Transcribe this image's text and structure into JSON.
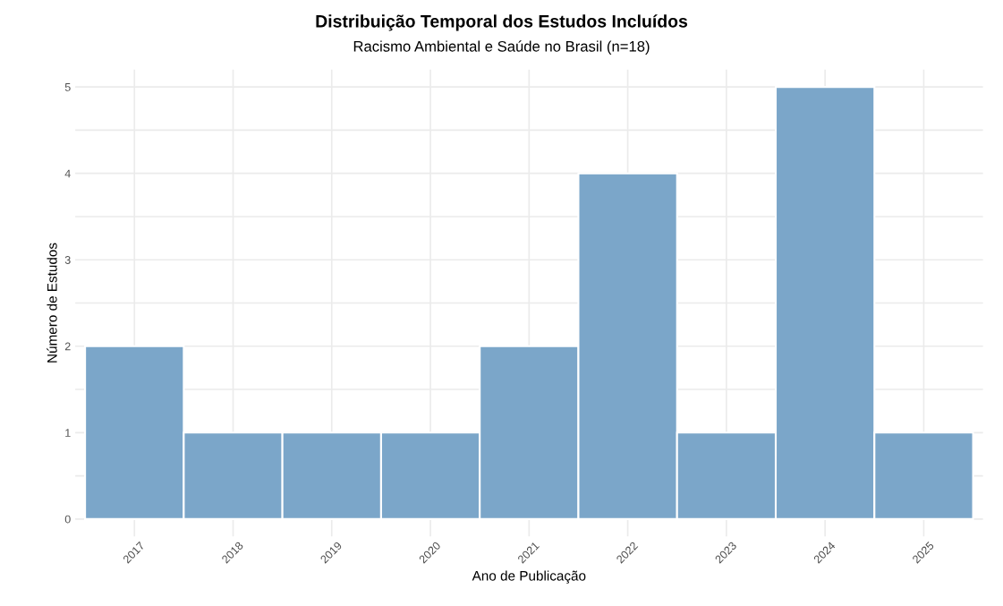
{
  "chart_data": {
    "type": "bar",
    "title": "Distribuição Temporal dos Estudos Incluídos",
    "subtitle": "Racismo Ambiental e Saúde no Brasil (n=18)",
    "xlabel": "Ano de Publicação",
    "ylabel": "Número de Estudos",
    "categories": [
      "2017",
      "2018",
      "2019",
      "2020",
      "2021",
      "2022",
      "2023",
      "2024",
      "2025"
    ],
    "values": [
      2,
      1,
      1,
      1,
      2,
      4,
      1,
      5,
      1
    ],
    "color": "#7ba6c9",
    "ylim": [
      -0.2,
      5.2
    ],
    "yticks": [
      0,
      {
        "value": 0.5,
        "label": null
      },
      1,
      {
        "value": 1.5,
        "label": null
      },
      2,
      {
        "value": 2.5,
        "label": null
      },
      3,
      {
        "value": 3.5,
        "label": null
      },
      4,
      {
        "value": 4.5,
        "label": null
      },
      5
    ],
    "grid": true,
    "legend": false
  }
}
